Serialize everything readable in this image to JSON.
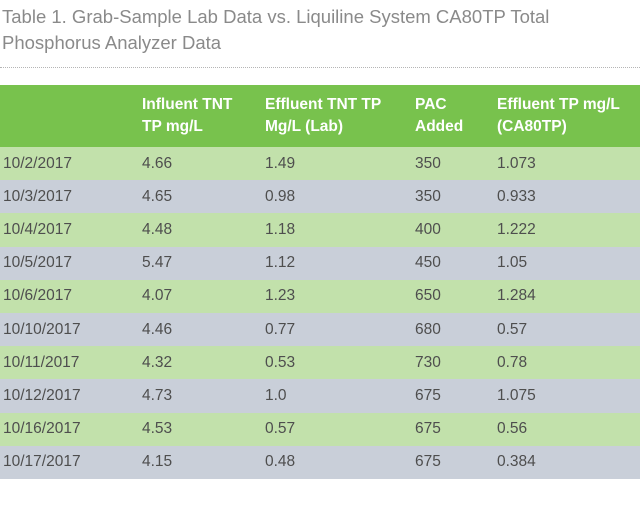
{
  "caption": {
    "line1": "Table 1. Grab-Sample Lab Data vs. Liquiline System CA80TP Total",
    "line2": "Phosphorus Analyzer Data"
  },
  "table": {
    "headers": [
      {
        "line1": "",
        "line2": ""
      },
      {
        "line1": "Influent TNT",
        "line2": "TP mg/L"
      },
      {
        "line1": "Effluent TNT TP",
        "line2": "Mg/L (Lab)"
      },
      {
        "line1": "PAC",
        "line2": "Added"
      },
      {
        "line1": "Effluent TP mg/L",
        "line2": "(CA80TP)"
      }
    ],
    "rows": [
      [
        "10/2/2017",
        "4.66",
        "1.49",
        "350",
        "1.073"
      ],
      [
        "10/3/2017",
        "4.65",
        "0.98",
        "350",
        "0.933"
      ],
      [
        "10/4/2017",
        "4.48",
        "1.18",
        "400",
        "1.222"
      ],
      [
        "10/5/2017",
        "5.47",
        "1.12",
        "450",
        "1.05"
      ],
      [
        "10/6/2017",
        "4.07",
        "1.23",
        "650",
        "1.284"
      ],
      [
        "10/10/2017",
        "4.46",
        "0.77",
        "680",
        "0.57"
      ],
      [
        "10/11/2017",
        "4.32",
        "0.53",
        "730",
        "0.78"
      ],
      [
        "10/12/2017",
        "4.73",
        "1.0",
        "675",
        "1.075"
      ],
      [
        "10/16/2017",
        "4.53",
        "0.57",
        "675",
        "0.56"
      ],
      [
        "10/17/2017",
        "4.15",
        "0.48",
        "675",
        "0.384"
      ]
    ]
  },
  "colors": {
    "header_bg": "#78c24d",
    "row_green": "#c2e1ab",
    "row_gray": "#c9cfd9",
    "caption_text": "#8a8a8a"
  }
}
